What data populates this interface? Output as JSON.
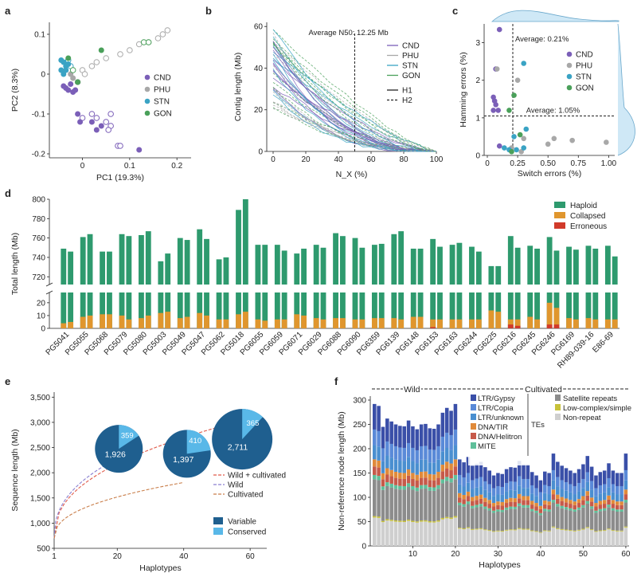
{
  "panels": {
    "a": "a",
    "b": "b",
    "c": "c",
    "d": "d",
    "e": "e",
    "f": "f"
  },
  "colors": {
    "CND": "#7b5fb8",
    "PHU": "#a8a8a8",
    "STN": "#3aa3c4",
    "GON": "#4aa05a",
    "haploid": "#2e9a6e",
    "collapsed": "#e0962e",
    "erroneous": "#d13a2a",
    "variable": "#1f5f8f",
    "conserved": "#59b8e8",
    "wild_cult": "#e05b4a",
    "wild": "#8a7fd0",
    "cultivated": "#c97e4a"
  },
  "chart_data": [
    {
      "panel": "a",
      "type": "scatter",
      "xlabel": "PC1 (19.3%)",
      "ylabel": "PC2 (8.3%)",
      "xlim": [
        -0.07,
        0.23
      ],
      "ylim": [
        -0.21,
        0.13
      ],
      "xticks": [
        "0",
        "0.1",
        "0.2"
      ],
      "yticks": [
        "0.1",
        "0",
        "-0.1",
        "-0.2"
      ],
      "legend": [
        "CND",
        "PHU",
        "STN",
        "GON"
      ],
      "series": [
        {
          "name": "CND",
          "filled": [
            [
              -0.04,
              -0.03
            ],
            [
              -0.035,
              -0.035
            ],
            [
              -0.03,
              -0.04
            ],
            [
              -0.02,
              -0.045
            ],
            [
              -0.015,
              -0.04
            ],
            [
              -0.025,
              -0.025
            ],
            [
              -0.01,
              -0.1
            ],
            [
              -0.005,
              -0.12
            ],
            [
              0.02,
              -0.12
            ],
            [
              0.04,
              -0.13
            ],
            [
              0.03,
              -0.14
            ],
            [
              0.12,
              -0.19
            ]
          ],
          "hollow": [
            [
              0.0,
              -0.11
            ],
            [
              0.02,
              -0.1
            ],
            [
              0.03,
              -0.11
            ],
            [
              0.06,
              -0.1
            ],
            [
              0.05,
              -0.12
            ],
            [
              0.06,
              -0.13
            ],
            [
              0.055,
              -0.14
            ],
            [
              0.075,
              -0.18
            ],
            [
              0.08,
              -0.18
            ]
          ]
        },
        {
          "name": "PHU",
          "filled": [
            [
              -0.025,
              0.0
            ],
            [
              -0.02,
              -0.01
            ]
          ],
          "hollow": [
            [
              0.03,
              0.03
            ],
            [
              0.05,
              0.04
            ],
            [
              0.08,
              0.05
            ],
            [
              0.1,
              0.06
            ],
            [
              0.12,
              0.075
            ],
            [
              0.14,
              0.08
            ],
            [
              0.16,
              0.09
            ],
            [
              0.17,
              0.1
            ],
            [
              0.18,
              0.11
            ],
            [
              0.0,
              0.01
            ],
            [
              0.02,
              0.02
            ],
            [
              -0.01,
              -0.02
            ],
            [
              0.005,
              0.0
            ]
          ]
        },
        {
          "name": "STN",
          "filled": [
            [
              -0.04,
              0.03
            ],
            [
              -0.035,
              0.02
            ],
            [
              -0.045,
              0.01
            ],
            [
              -0.04,
              0.0
            ],
            [
              -0.03,
              0.025
            ],
            [
              -0.045,
              0.035
            ],
            [
              -0.035,
              0.01
            ]
          ],
          "hollow": [
            [
              -0.03,
              0.035
            ],
            [
              -0.025,
              0.02
            ]
          ]
        },
        {
          "name": "GON",
          "filled": [
            [
              0.04,
              0.06
            ],
            [
              -0.03,
              0.04
            ],
            [
              -0.01,
              -0.02
            ]
          ],
          "hollow": [
            [
              0.13,
              0.08
            ],
            [
              0.14,
              0.08
            ],
            [
              -0.02,
              0.01
            ]
          ]
        }
      ]
    },
    {
      "panel": "b",
      "type": "line",
      "xlabel": "N_X (%)",
      "ylabel": "Contig length (Mb)",
      "xlim": [
        0,
        100
      ],
      "ylim": [
        0,
        62
      ],
      "xticks": [
        "0",
        "20",
        "40",
        "60",
        "80",
        "100"
      ],
      "yticks": [
        "60",
        "40",
        "20",
        "0"
      ],
      "annotation": "Average N50: 12.25 Mb",
      "vline_x": 50,
      "legend": [
        "CND",
        "PHU",
        "STN",
        "GON",
        "H1",
        "H2"
      ],
      "note": "many per-haplotype curves decaying from ~20-60 Mb at N0 to 0 at N100"
    },
    {
      "panel": "c",
      "type": "scatter",
      "xlabel": "Switch errors (%)",
      "ylabel": "Hamming errors (%)",
      "xlim": [
        0,
        1.05
      ],
      "ylim": [
        0,
        3.5
      ],
      "xticks": [
        "0",
        "0.25",
        "0.50",
        "0.75",
        "1.00"
      ],
      "yticks": [
        "3",
        "2",
        "1",
        "0"
      ],
      "annotations": [
        "Average: 0.21%",
        "Average: 1.05%"
      ],
      "vline_x": 0.21,
      "hline_y": 1.05,
      "legend": [
        "CND",
        "PHU",
        "STN",
        "GON"
      ],
      "series": [
        {
          "name": "CND",
          "points": [
            [
              0.1,
              3.35
            ],
            [
              0.05,
              1.55
            ],
            [
              0.06,
              1.45
            ],
            [
              0.07,
              1.35
            ],
            [
              0.05,
              1.2
            ],
            [
              0.09,
              1.2
            ],
            [
              0.1,
              0.25
            ],
            [
              0.07,
              2.3
            ]
          ]
        },
        {
          "name": "PHU",
          "points": [
            [
              0.08,
              2.3
            ],
            [
              0.25,
              2.0
            ],
            [
              0.3,
              0.45
            ],
            [
              0.5,
              0.3
            ],
            [
              0.7,
              0.4
            ],
            [
              0.98,
              0.35
            ],
            [
              0.2,
              0.2
            ],
            [
              0.28,
              0.1
            ],
            [
              0.55,
              0.45
            ]
          ]
        },
        {
          "name": "STN",
          "points": [
            [
              0.3,
              2.45
            ],
            [
              0.32,
              0.7
            ],
            [
              0.22,
              0.5
            ],
            [
              0.18,
              0.15
            ],
            [
              0.24,
              0.15
            ],
            [
              0.3,
              0.2
            ],
            [
              0.14,
              0.2
            ]
          ]
        },
        {
          "name": "GON",
          "points": [
            [
              0.22,
              1.6
            ],
            [
              0.18,
              1.2
            ],
            [
              0.27,
              0.55
            ],
            [
              0.2,
              0.1
            ]
          ]
        }
      ]
    },
    {
      "panel": "d",
      "type": "bar",
      "ylabel": "Total length (Mb)",
      "yticks_upper": [
        "800",
        "780",
        "760",
        "740",
        "720"
      ],
      "yticks_lower": [
        "20",
        "10",
        "0"
      ],
      "legend": [
        "Haploid",
        "Collapsed",
        "Erroneous"
      ],
      "categories": [
        "PG5041",
        "PG5055",
        "PG5068",
        "PG5079",
        "PG5080",
        "PG5003",
        "PG5049",
        "PG5047",
        "PG5062",
        "PG5018",
        "PG6055",
        "PG6059",
        "PG6071",
        "PG6029",
        "PG6088",
        "PG6090",
        "PG6359",
        "PG6139",
        "PG6148",
        "PG6153",
        "PG6163",
        "PG6244",
        "PG6225",
        "PG6216",
        "PG6245",
        "PG6246",
        "PG6169",
        "RH89-039-16",
        "E86-69"
      ],
      "series": [
        {
          "name": "H1_total",
          "values": [
            749,
            761,
            746,
            764,
            763,
            736,
            760,
            769,
            738,
            789,
            753,
            753,
            744,
            753,
            765,
            760,
            753,
            764,
            749,
            759,
            753,
            751,
            731,
            762,
            752,
            761,
            751,
            752,
            752
          ]
        },
        {
          "name": "H2_total",
          "values": [
            746,
            764,
            746,
            762,
            767,
            744,
            758,
            759,
            740,
            800,
            753,
            747,
            749,
            750,
            762,
            750,
            754,
            767,
            749,
            751,
            755,
            746,
            731,
            750,
            749,
            747,
            748,
            749,
            741
          ]
        },
        {
          "name": "H1_collapsed",
          "values": [
            4,
            9,
            11,
            10,
            8,
            12,
            8,
            12,
            7,
            11,
            7,
            7,
            11,
            8,
            8,
            7,
            8,
            8,
            9,
            7,
            7,
            7,
            14,
            7,
            9,
            20,
            8,
            8,
            7
          ]
        },
        {
          "name": "H2_collapsed",
          "values": [
            5,
            10,
            11,
            7,
            10,
            13,
            9,
            10,
            7,
            13,
            6,
            7,
            10,
            7,
            8,
            7,
            8,
            7,
            9,
            7,
            7,
            7,
            13,
            7,
            7,
            16,
            7,
            7,
            7
          ]
        },
        {
          "name": "H1_erroneous",
          "values": [
            0,
            0,
            0,
            0,
            0,
            0,
            0,
            0,
            0,
            0,
            0,
            0,
            0,
            0,
            0,
            0,
            0,
            0,
            0,
            1,
            0,
            0,
            0,
            3,
            0,
            3,
            0,
            0,
            0
          ]
        },
        {
          "name": "H2_erroneous",
          "values": [
            0,
            0,
            0,
            0,
            0,
            0,
            0,
            0,
            0,
            0,
            0,
            0,
            0,
            0,
            0,
            0,
            0,
            0,
            0,
            0,
            0,
            0,
            0,
            2,
            0,
            3,
            0,
            0,
            0
          ]
        }
      ]
    },
    {
      "panel": "e",
      "type": "line",
      "xlabel": "Haplotypes",
      "ylabel": "Sequence length (Mb)",
      "xlim": [
        1,
        65
      ],
      "ylim": [
        500,
        3600
      ],
      "xticks": [
        "1",
        "20",
        "40",
        "60"
      ],
      "yticks": [
        "3,500",
        "3,000",
        "2,500",
        "2,000",
        "1,500",
        "1,000",
        "500"
      ],
      "legend": [
        "Wild + cultivated",
        "Wild",
        "Cultivated"
      ],
      "pie_legend": [
        "Variable",
        "Conserved"
      ],
      "pies": [
        {
          "group": "Wild",
          "variable": 1926,
          "conserved": 359,
          "variable_label": "1,926",
          "conserved_label": "359"
        },
        {
          "group": "Cultivated",
          "variable": 1397,
          "conserved": 410,
          "variable_label": "1,397",
          "conserved_label": "410"
        },
        {
          "group": "Wild + cultivated",
          "variable": 2711,
          "conserved": 365,
          "variable_label": "2,711",
          "conserved_label": "365"
        }
      ],
      "curves": [
        {
          "name": "Wild + cultivated",
          "end_x": 60,
          "end_y": 3076
        },
        {
          "name": "Wild",
          "end_x": 20,
          "end_y": 2285
        },
        {
          "name": "Cultivated",
          "end_x": 40,
          "end_y": 1807
        }
      ]
    },
    {
      "panel": "f",
      "type": "bar",
      "xlabel": "Haplotypes",
      "ylabel": "Non-reference node length (Mb)",
      "ylim": [
        0,
        300
      ],
      "yticks": [
        "300",
        "250",
        "200",
        "150",
        "100",
        "50",
        "0"
      ],
      "xticks": [
        "10",
        "20",
        "30",
        "40",
        "50",
        "60"
      ],
      "groups": [
        "Wild",
        "Cultivated"
      ],
      "legend_te": [
        "LTR/Gypsy",
        "LTR/Copia",
        "LTR/unknown",
        "DNA/TIR",
        "DNA/Helitron",
        "MITE"
      ],
      "legend_other": [
        "Satellite repeats",
        "Low-complex/simple",
        "Non-repeat"
      ],
      "te_label": "TEs",
      "stack_colors": [
        "#cfcfcf",
        "#c8c23a",
        "#8c8c8c",
        "#5fbf9a",
        "#c65a4a",
        "#e08a3a",
        "#4a8fd0",
        "#5a8ad8",
        "#3a4fa8"
      ],
      "totals": [
        292,
        288,
        245,
        262,
        256,
        250,
        247,
        246,
        258,
        246,
        240,
        250,
        251,
        242,
        241,
        250,
        274,
        284,
        278,
        292,
        178,
        172,
        183,
        165,
        169,
        173,
        162,
        155,
        145,
        150,
        148,
        158,
        162,
        161,
        175,
        168,
        168,
        152,
        145,
        135,
        153,
        150,
        190,
        173,
        165,
        160,
        155,
        150,
        158,
        168,
        185,
        163,
        145,
        152,
        155,
        170,
        155,
        150,
        150,
        190
      ]
    }
  ]
}
